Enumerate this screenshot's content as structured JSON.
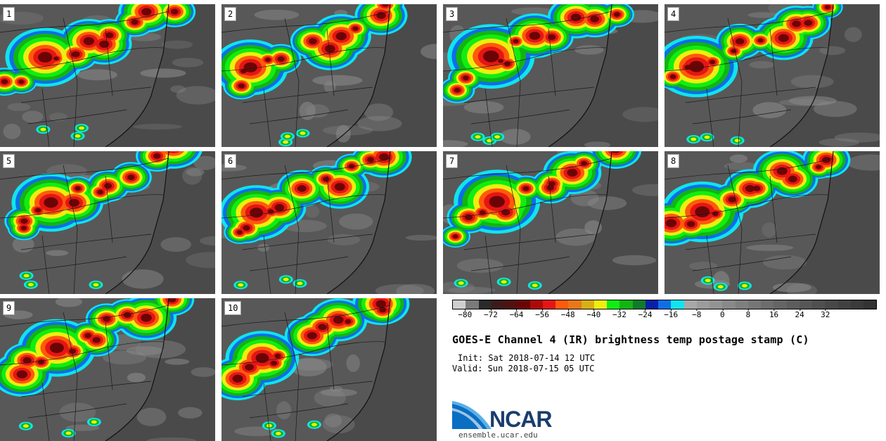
{
  "title": "GOES-E Channel 4 (IR) brightness temp postage stamp (C)",
  "init": "Init: Sat 2018-07-14 12 UTC",
  "valid": "Valid: Sun 2018-07-15 05 UTC",
  "logo_text": "NCAR",
  "url": "ensemble.ucar.edu",
  "panels": [
    "1",
    "2",
    "3",
    "4",
    "5",
    "6",
    "7",
    "8",
    "9",
    "10"
  ],
  "colorbar": {
    "colors": [
      "#cfcfcf",
      "#7a7a7a",
      "#2a2a2a",
      "#3d1a1a",
      "#4f1111",
      "#6b0505",
      "#b00808",
      "#e51515",
      "#ff5a0a",
      "#e8781a",
      "#d6b012",
      "#eeee10",
      "#10ee10",
      "#12b412",
      "#0e7c2a",
      "#0a1fa8",
      "#0e6ee8",
      "#10e4ee",
      "#a8a8a8",
      "#9c9c9c",
      "#939393",
      "#898989",
      "#7f7f7f",
      "#767676",
      "#6d6d6d",
      "#656565",
      "#5d5d5d",
      "#565656",
      "#4f4f4f",
      "#484848",
      "#414141",
      "#3a3a3a",
      "#333333"
    ],
    "ticks": [
      "−80",
      "−72",
      "−64",
      "−56",
      "−48",
      "−40",
      "−32",
      "−24",
      "−16",
      "−8",
      "0",
      "8",
      "16",
      "24",
      "32"
    ],
    "min": -84,
    "max": 48
  }
}
